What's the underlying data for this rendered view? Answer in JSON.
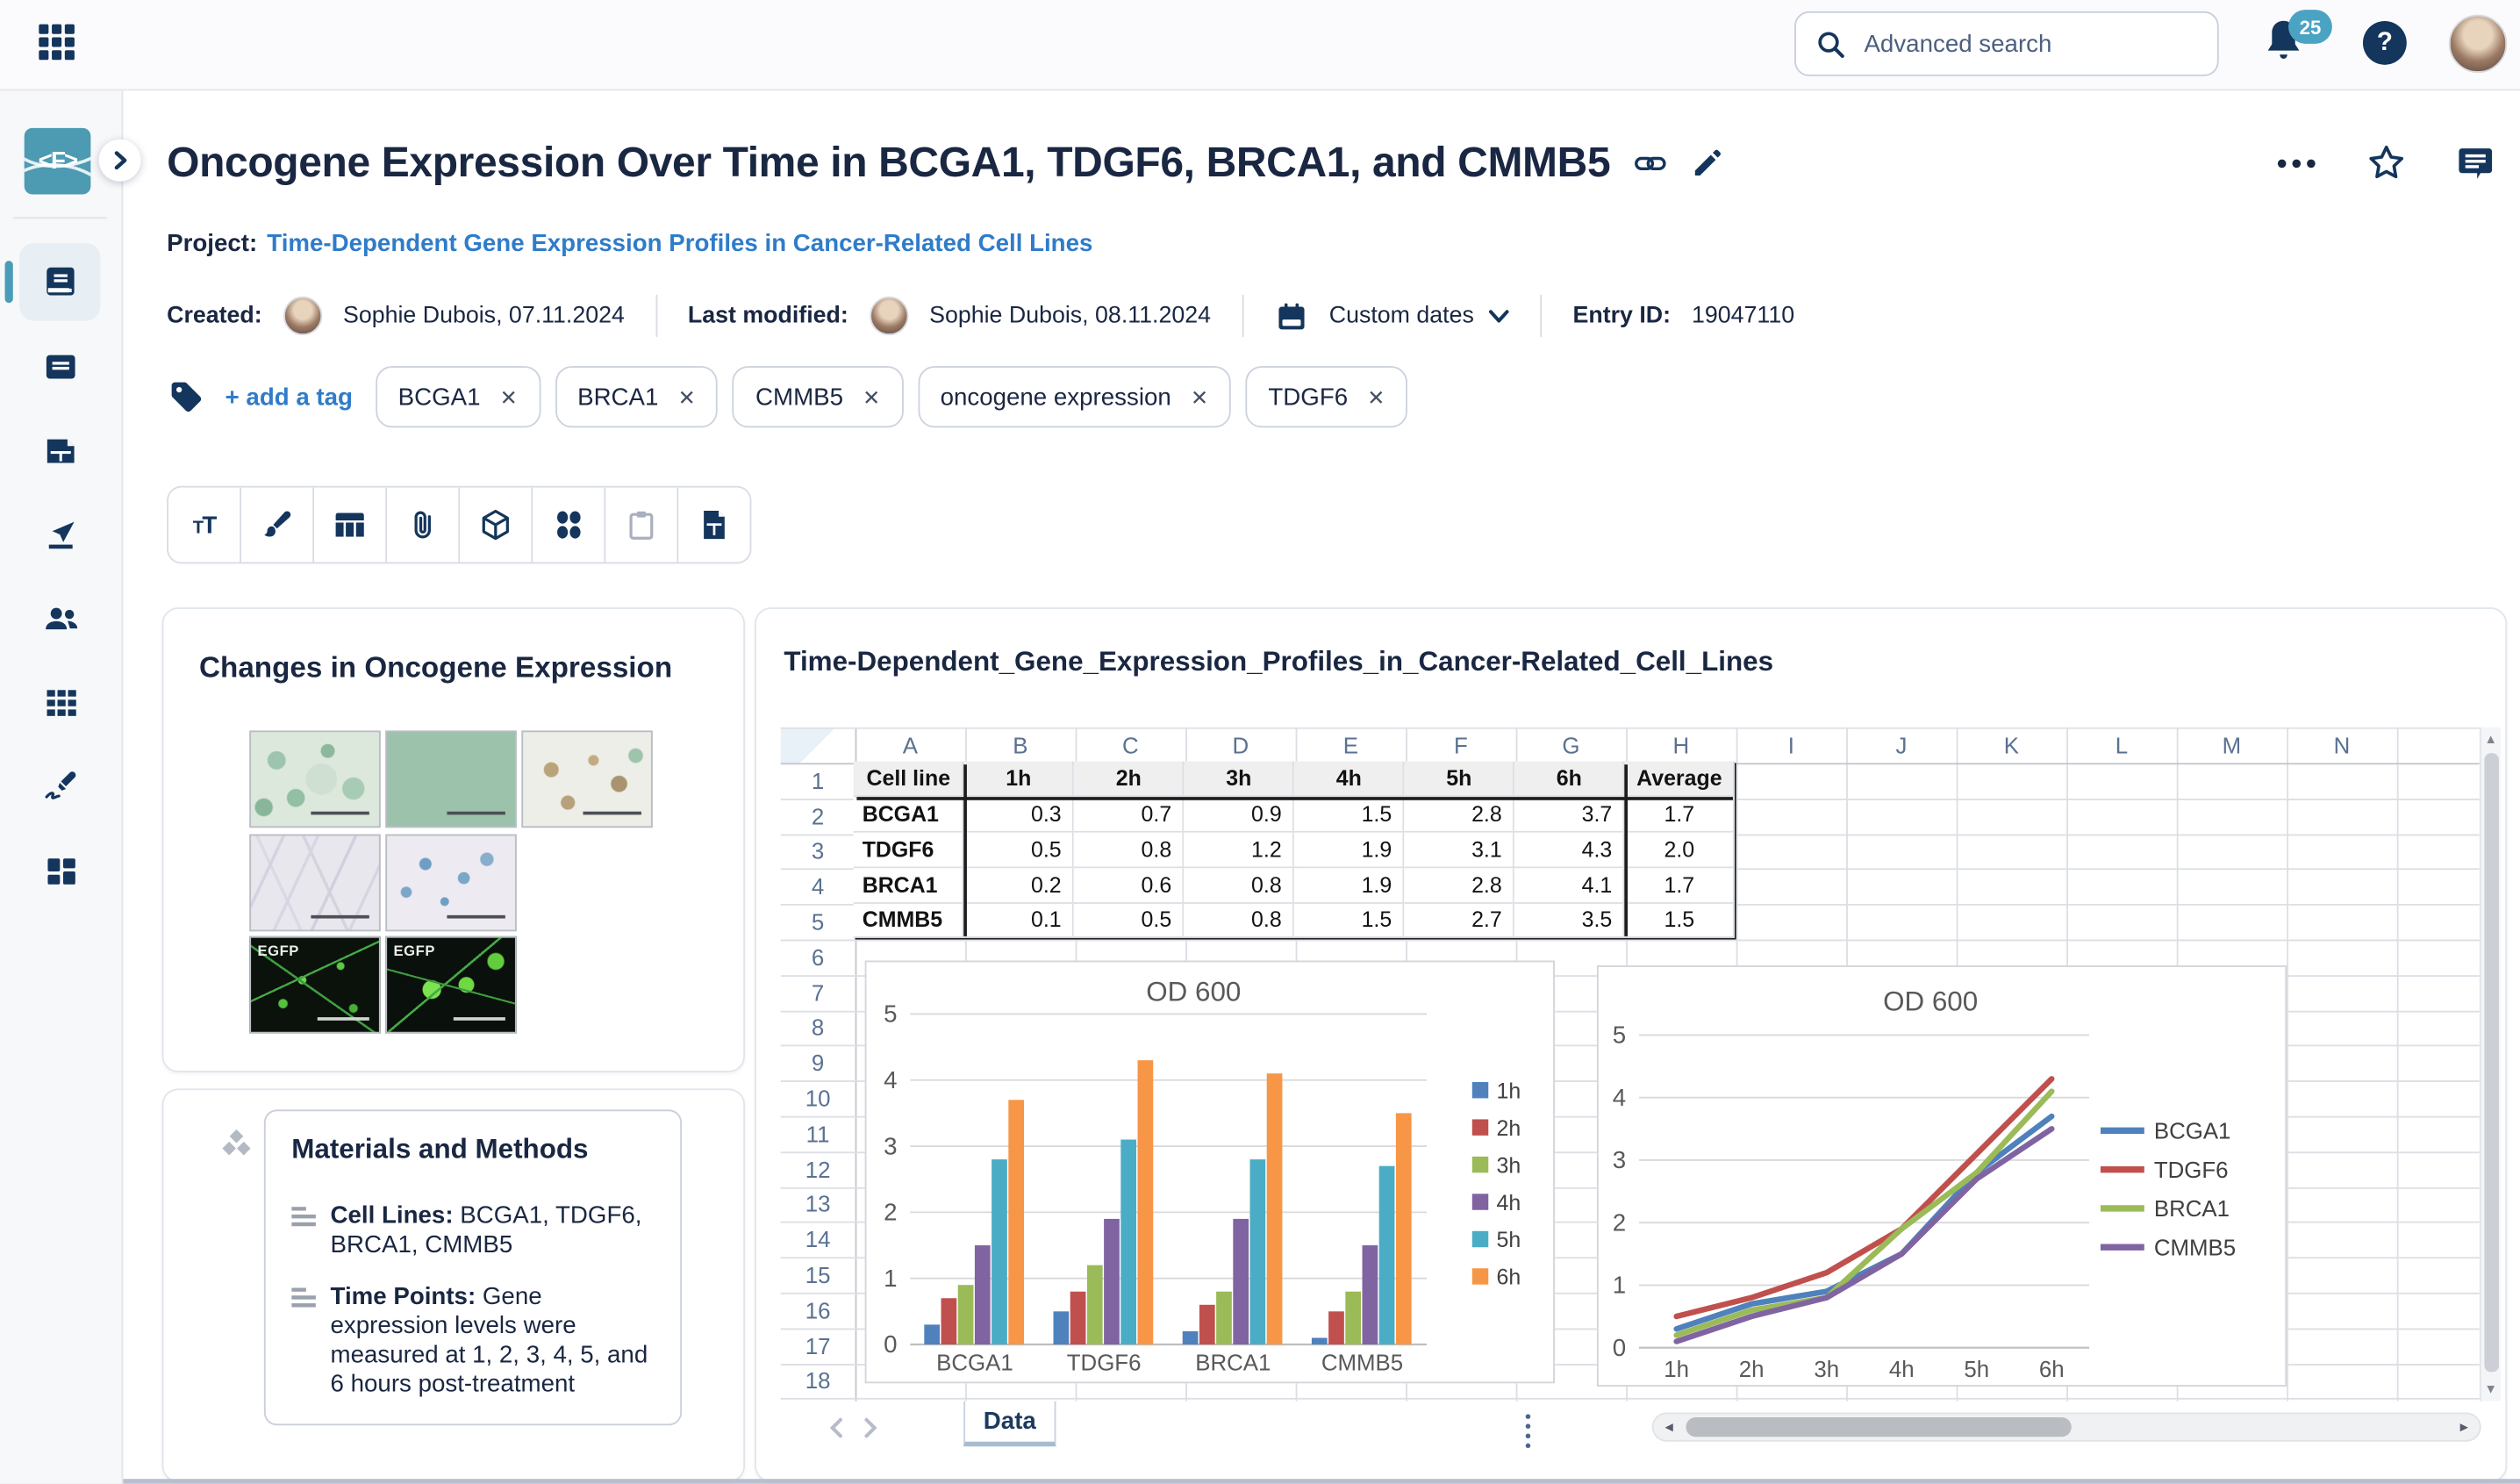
{
  "topbar": {
    "search_placeholder": "Advanced search",
    "notification_count": "25",
    "help_label": "?"
  },
  "sidebar": {
    "logo_text": "<F>",
    "items": [
      {
        "icon": "notebook-icon",
        "active": true
      },
      {
        "icon": "notes-icon"
      },
      {
        "icon": "spreadsheet-file-icon"
      },
      {
        "icon": "import-icon"
      },
      {
        "icon": "users-icon"
      },
      {
        "icon": "grid-icon"
      },
      {
        "icon": "signature-icon"
      },
      {
        "icon": "dashboard-icon"
      }
    ]
  },
  "header": {
    "title": "Oncogene Expression Over Time in BCGA1, TDGF6, BRCA1, and CMMB5",
    "project_label": "Project:",
    "project_name": "Time-Dependent Gene Expression Profiles in Cancer-Related Cell Lines",
    "created_label": "Created:",
    "created_value": "Sophie Dubois, 07.11.2024",
    "modified_label": "Last modified:",
    "modified_value": "Sophie Dubois, 08.11.2024",
    "dates_selector": "Custom dates",
    "entry_id_label": "Entry ID:",
    "entry_id": "19047110"
  },
  "tags": {
    "add_label": "+ add a tag",
    "items": [
      "BCGA1",
      "BRCA1",
      "CMMB5",
      "oncogene expression",
      "TDGF6"
    ]
  },
  "toolbar": {
    "icons": [
      "text-icon",
      "brush-icon",
      "table-icon",
      "attachment-icon",
      "cube-icon",
      "shapes-icon",
      "clipboard-icon",
      "spreadsheet-doc-icon"
    ]
  },
  "content": {
    "images_card": {
      "title": "Changes in Oncogene Expression",
      "egfp_label": "EGFP"
    },
    "methods_card": {
      "title": "Materials and Methods",
      "items": [
        {
          "label": "Cell Lines:",
          "text": "BCGA1, TDGF6, BRCA1, CMMB5"
        },
        {
          "label": "Time Points:",
          "text": "Gene expression levels were measured at 1, 2, 3, 4, 5, and 6 hours post-treatment"
        }
      ]
    }
  },
  "sheet": {
    "title": "Time-Dependent_Gene_Expression_Profiles_in_Cancer-Related_Cell_Lines",
    "columns": [
      "A",
      "B",
      "C",
      "D",
      "E",
      "F",
      "G",
      "H",
      "I",
      "J",
      "K",
      "L",
      "M",
      "N"
    ],
    "row_count": 19,
    "table": {
      "header": [
        "Cell line",
        "1h",
        "2h",
        "3h",
        "4h",
        "5h",
        "6h",
        "Average"
      ],
      "rows": [
        [
          "BCGA1",
          "0.3",
          "0.7",
          "0.9",
          "1.5",
          "2.8",
          "3.7",
          "1.7"
        ],
        [
          "TDGF6",
          "0.5",
          "0.8",
          "1.2",
          "1.9",
          "3.1",
          "4.3",
          "2.0"
        ],
        [
          "BRCA1",
          "0.2",
          "0.6",
          "0.8",
          "1.9",
          "2.8",
          "4.1",
          "1.7"
        ],
        [
          "CMMB5",
          "0.1",
          "0.5",
          "0.8",
          "1.5",
          "2.7",
          "3.5",
          "1.5"
        ]
      ]
    },
    "tab_label": "Data"
  },
  "chart_data": [
    {
      "type": "bar",
      "title": "OD 600",
      "categories": [
        "BCGA1",
        "TDGF6",
        "BRCA1",
        "CMMB5"
      ],
      "series": [
        {
          "name": "1h",
          "color": "#4F81BD",
          "values": [
            0.3,
            0.5,
            0.2,
            0.1
          ]
        },
        {
          "name": "2h",
          "color": "#C0504D",
          "values": [
            0.7,
            0.8,
            0.6,
            0.5
          ]
        },
        {
          "name": "3h",
          "color": "#9BBB59",
          "values": [
            0.9,
            1.2,
            0.8,
            0.8
          ]
        },
        {
          "name": "4h",
          "color": "#8064A2",
          "values": [
            1.5,
            1.9,
            1.9,
            1.5
          ]
        },
        {
          "name": "5h",
          "color": "#4BACC6",
          "values": [
            2.8,
            3.1,
            2.8,
            2.7
          ]
        },
        {
          "name": "6h",
          "color": "#F79646",
          "values": [
            3.7,
            4.3,
            4.1,
            3.5
          ]
        }
      ],
      "ylim": [
        0,
        5
      ],
      "yticks": [
        0,
        1,
        2,
        3,
        4,
        5
      ],
      "grid": true,
      "legend_position": "right"
    },
    {
      "type": "line",
      "title": "OD 600",
      "x": [
        "1h",
        "2h",
        "3h",
        "4h",
        "5h",
        "6h"
      ],
      "series": [
        {
          "name": "BCGA1",
          "color": "#4F81BD",
          "values": [
            0.3,
            0.7,
            0.9,
            1.5,
            2.8,
            3.7
          ]
        },
        {
          "name": "TDGF6",
          "color": "#C0504D",
          "values": [
            0.5,
            0.8,
            1.2,
            1.9,
            3.1,
            4.3
          ]
        },
        {
          "name": "BRCA1",
          "color": "#9BBB59",
          "values": [
            0.2,
            0.6,
            0.8,
            1.9,
            2.8,
            4.1
          ]
        },
        {
          "name": "CMMB5",
          "color": "#8064A2",
          "values": [
            0.1,
            0.5,
            0.8,
            1.5,
            2.7,
            3.5
          ]
        }
      ],
      "ylim": [
        0,
        5
      ],
      "yticks": [
        0,
        1,
        2,
        3,
        4,
        5
      ],
      "grid": true,
      "legend_position": "right"
    }
  ],
  "colors": {
    "navy": "#14355C",
    "teal_accent": "#4D9AB3",
    "badge_teal": "#4BA3C3",
    "link_blue": "#2F7CC9",
    "table_header_bg": "#EFEFEF",
    "series_palette": [
      "#4F81BD",
      "#C0504D",
      "#9BBB59",
      "#8064A2",
      "#4BACC6",
      "#F79646"
    ]
  }
}
